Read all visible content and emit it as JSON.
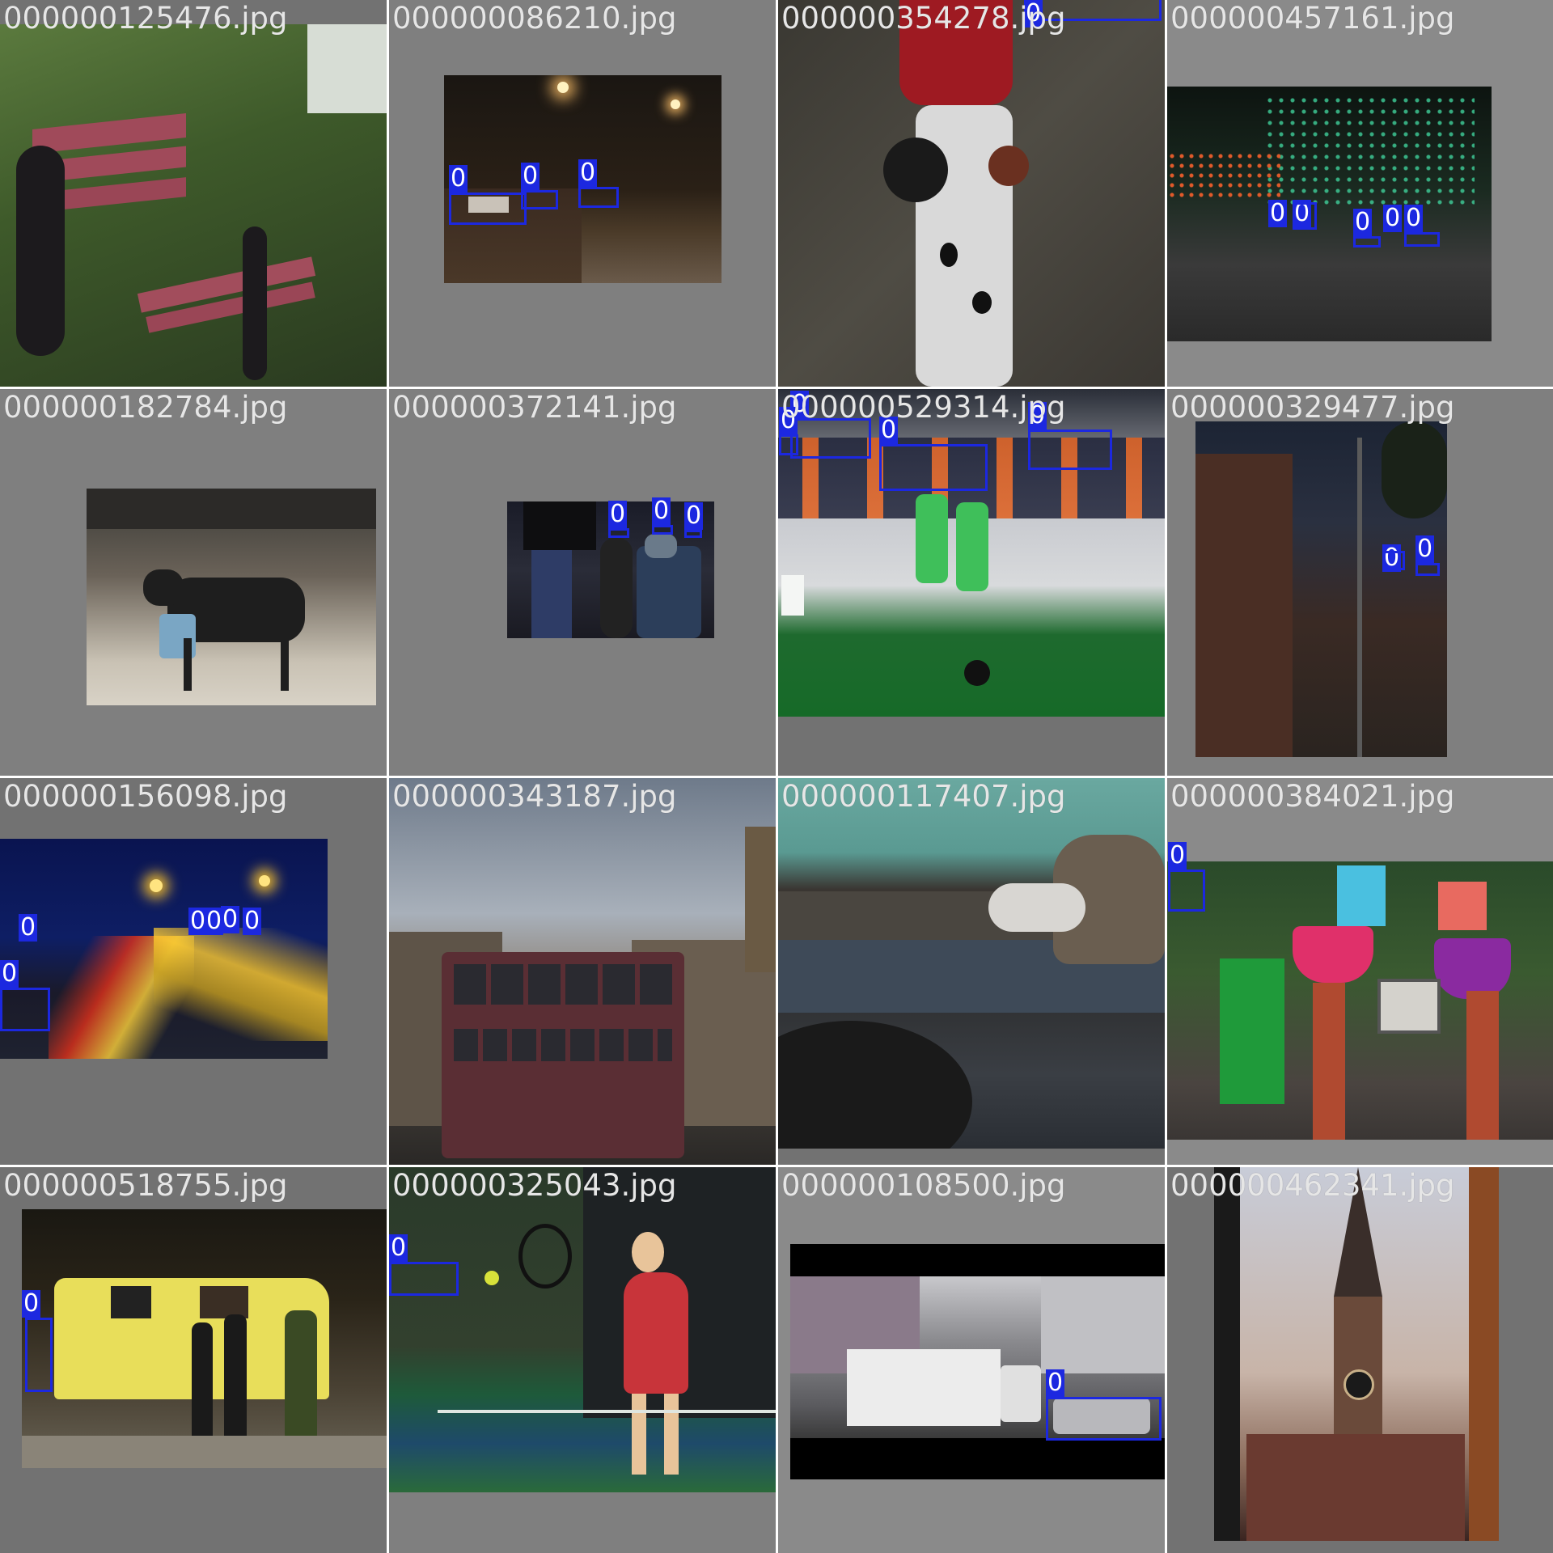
{
  "mosaic": {
    "tiles": [
      {
        "filename": "000000125476.jpg"
      },
      {
        "filename": "000000086210.jpg"
      },
      {
        "filename": "000000354278.jpg"
      },
      {
        "filename": "000000457161.jpg"
      },
      {
        "filename": "000000182784.jpg"
      },
      {
        "filename": "000000372141.jpg"
      },
      {
        "filename": "000000529314.jpg"
      },
      {
        "filename": "000000329477.jpg"
      },
      {
        "filename": "000000156098.jpg"
      },
      {
        "filename": "000000343187.jpg"
      },
      {
        "filename": "000000117407.jpg"
      },
      {
        "filename": "000000384021.jpg"
      },
      {
        "filename": "000000518755.jpg"
      },
      {
        "filename": "000000325043.jpg"
      },
      {
        "filename": "000000108500.jpg"
      },
      {
        "filename": "000000462341.jpg"
      }
    ],
    "box_label": "0",
    "box_color": "#1c28e0",
    "filename_color": "#e6e6e6"
  }
}
